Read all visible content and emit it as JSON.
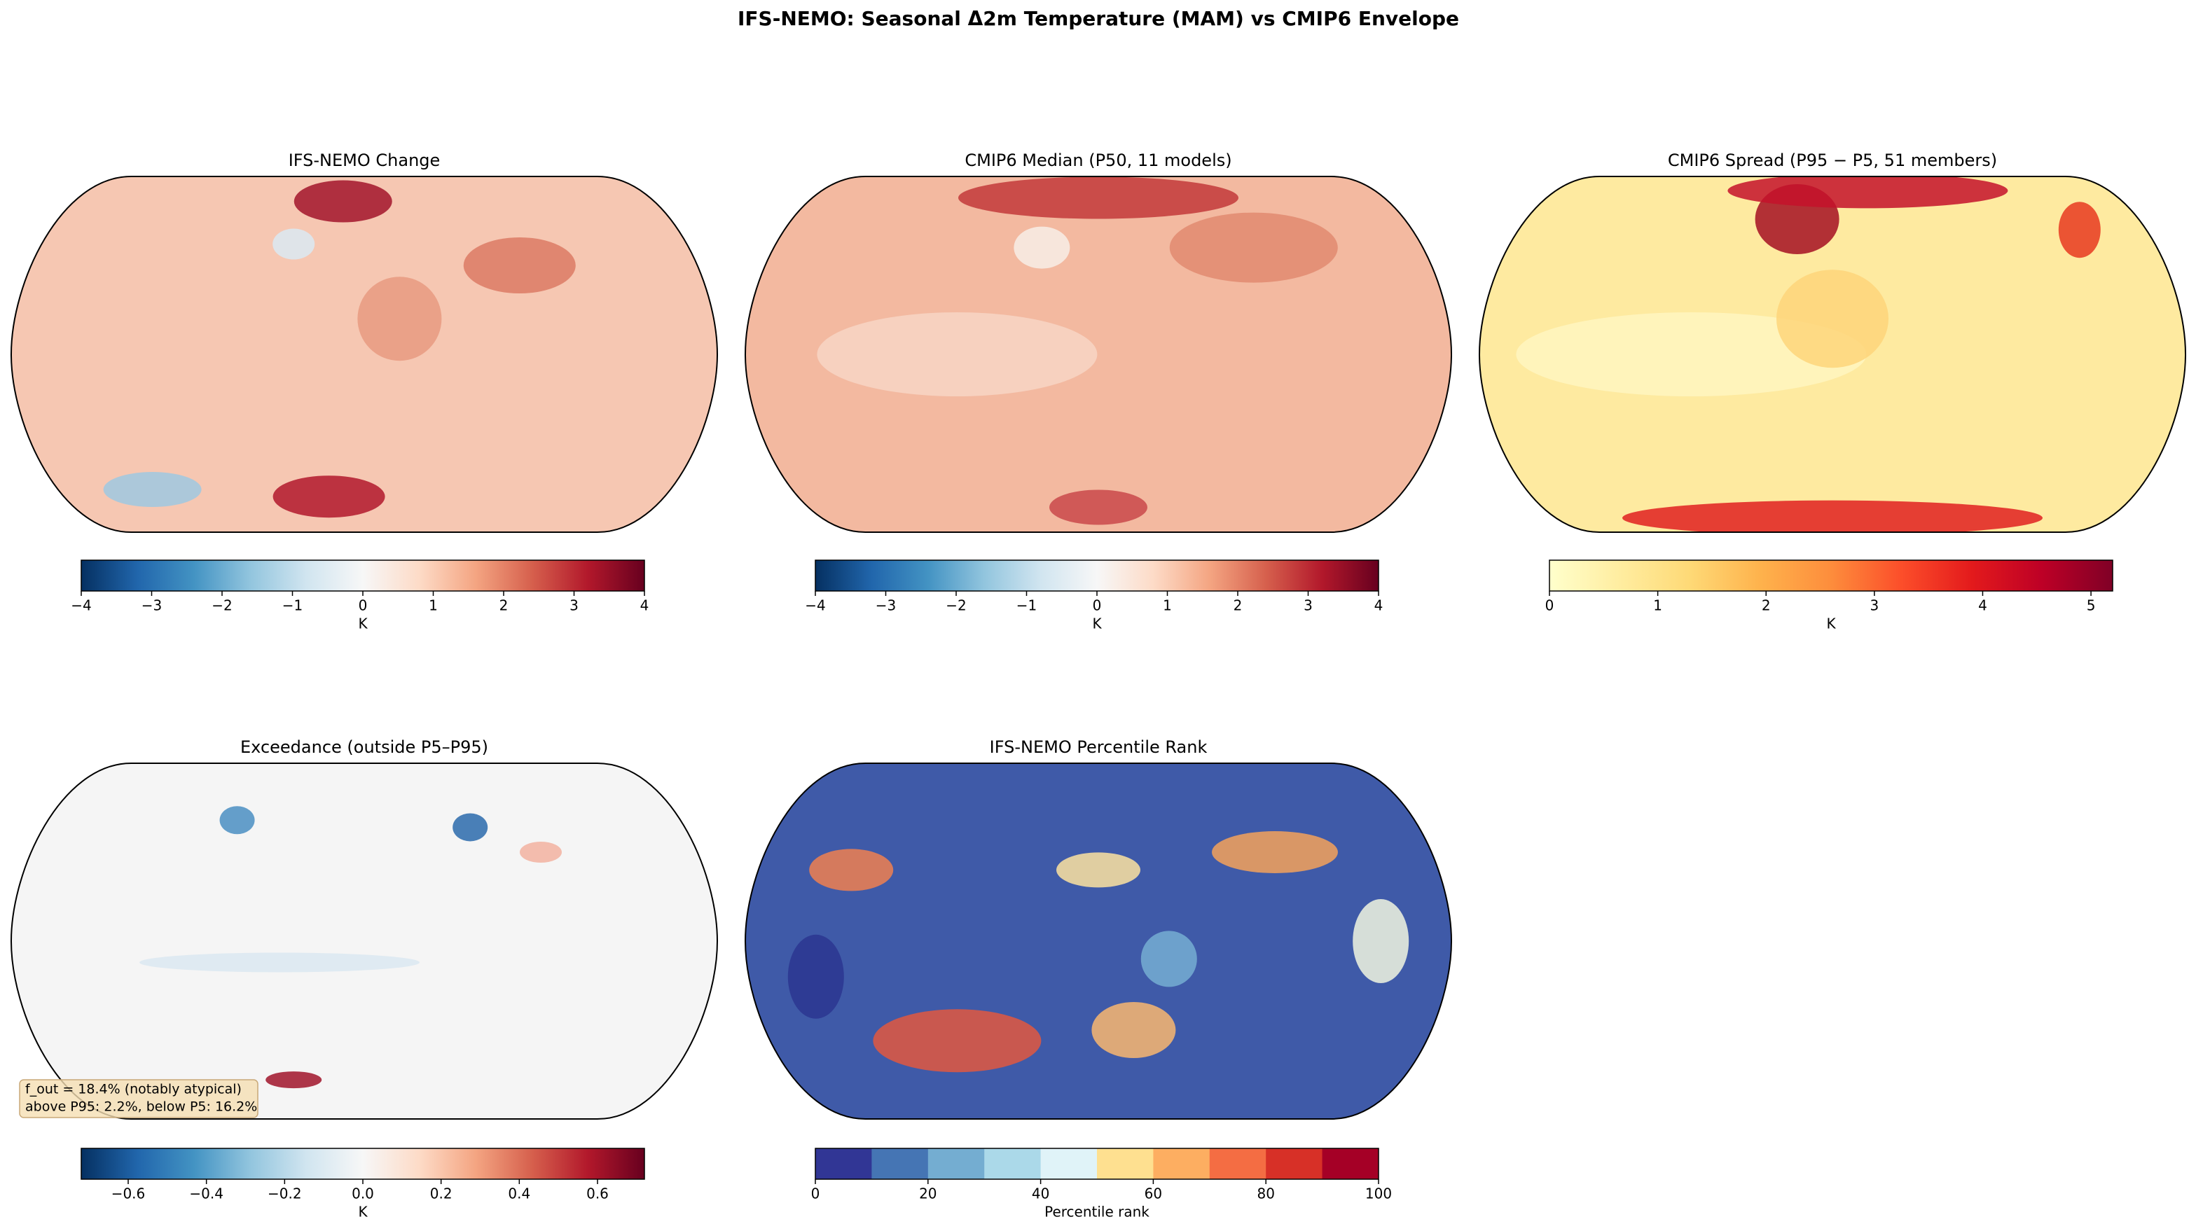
{
  "suptitle": "IFS-NEMO: Seasonal Δ2m Temperature (MAM) vs CMIP6 Envelope",
  "chart_data": [
    {
      "type": "map",
      "title": "IFS-NEMO Change",
      "colorbar": {
        "label": "K",
        "clim": [
          -4,
          4
        ],
        "discrete": false,
        "cticks": [
          {
            "value": -4,
            "label": "−4"
          },
          {
            "value": -3,
            "label": "−3"
          },
          {
            "value": -2,
            "label": "−2"
          },
          {
            "value": -1,
            "label": "−1"
          },
          0,
          1,
          2,
          3,
          4
        ],
        "colors": [
          "#053061",
          "#2166ac",
          "#4393c3",
          "#92c5de",
          "#d1e5f0",
          "#f7f7f7",
          "#fddbc7",
          "#f4a582",
          "#d6604d",
          "#b2182b",
          "#67001f"
        ]
      }
    },
    {
      "type": "map",
      "title": "CMIP6 Median (P50, 11 models)",
      "colorbar": {
        "label": "K",
        "clim": [
          -4,
          4
        ],
        "discrete": false,
        "cticks": [
          {
            "value": -4,
            "label": "−4"
          },
          {
            "value": -3,
            "label": "−3"
          },
          {
            "value": -2,
            "label": "−2"
          },
          {
            "value": -1,
            "label": "−1"
          },
          0,
          1,
          2,
          3,
          4
        ],
        "colors": [
          "#053061",
          "#2166ac",
          "#4393c3",
          "#92c5de",
          "#d1e5f0",
          "#f7f7f7",
          "#fddbc7",
          "#f4a582",
          "#d6604d",
          "#b2182b",
          "#67001f"
        ]
      }
    },
    {
      "type": "map",
      "title": "CMIP6 Spread (P95 − P5, 51 members)",
      "colorbar": {
        "label": "K",
        "clim": [
          0,
          5.2
        ],
        "discrete": false,
        "cticks": [
          0,
          1,
          2,
          3,
          4,
          5
        ],
        "colors": [
          "#ffffcc",
          "#ffeda0",
          "#fed976",
          "#feb24c",
          "#fd8d3c",
          "#fc4e2a",
          "#e31a1c",
          "#bd0026",
          "#800026"
        ]
      }
    },
    {
      "type": "map",
      "title": "Exceedance (outside P5–P95)",
      "annotation": [
        "f_out = 18.4% (notably atypical)",
        "above P95: 2.2%, below P5: 16.2%"
      ],
      "colorbar": {
        "label": "K",
        "clim": [
          -0.72,
          0.72
        ],
        "discrete": false,
        "cticks": [
          {
            "value": -0.6,
            "label": "−0.6"
          },
          {
            "value": -0.4,
            "label": "−0.4"
          },
          {
            "value": -0.2,
            "label": "−0.2"
          },
          {
            "value": 0,
            "label": "0.0"
          },
          0.2,
          0.4,
          0.6
        ],
        "colors": [
          "#053061",
          "#2166ac",
          "#4393c3",
          "#92c5de",
          "#d1e5f0",
          "#f7f7f7",
          "#fddbc7",
          "#f4a582",
          "#d6604d",
          "#b2182b",
          "#67001f"
        ]
      }
    },
    {
      "type": "map",
      "title": "IFS-NEMO Percentile Rank",
      "colorbar": {
        "label": "Percentile rank",
        "clim": [
          0,
          100
        ],
        "discrete": true,
        "cticks": [
          0,
          20,
          40,
          60,
          80,
          100
        ],
        "colors": [
          "#313695",
          "#4575b4",
          "#74add1",
          "#abd9e9",
          "#e0f3f8",
          "#fee090",
          "#fdae61",
          "#f46d43",
          "#d73027",
          "#a50026"
        ]
      }
    }
  ]
}
